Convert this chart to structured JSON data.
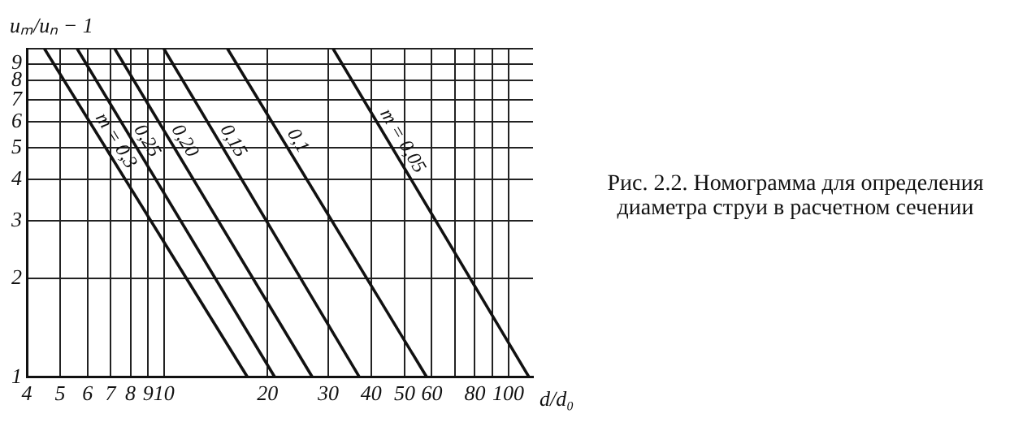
{
  "chart_data": {
    "type": "line",
    "xlabel": "d/d₀",
    "ylabel": "uₘ/uₙ − 1",
    "log": "xy",
    "grid": true,
    "legend": false,
    "marker": "none",
    "line_style": "solid",
    "xlim": [
      4,
      118
    ],
    "ylim": [
      1,
      10
    ],
    "xticks": [
      4,
      5,
      6,
      7,
      8,
      9,
      10,
      {
        "value": 20,
        "label": "20"
      },
      30,
      40,
      50,
      60,
      {
        "value": 70,
        "label": null
      },
      80,
      {
        "value": 90,
        "label": null
      },
      100
    ],
    "yticks": [
      1,
      2,
      3,
      4,
      5,
      6,
      7,
      8,
      9,
      {
        "value": 10,
        "label": null
      }
    ],
    "series": [
      {
        "name": "m = 0,3",
        "color": "#111111",
        "x": [
          4.5,
          17.5
        ],
        "values": [
          10,
          1
        ]
      },
      {
        "name": "0,25",
        "color": "#111111",
        "x": [
          5.6,
          21
        ],
        "values": [
          10,
          1
        ]
      },
      {
        "name": "0,20",
        "color": "#111111",
        "x": [
          7.2,
          27
        ],
        "values": [
          10,
          1
        ]
      },
      {
        "name": "0,15",
        "color": "#111111",
        "x": [
          10,
          37
        ],
        "values": [
          10,
          1
        ]
      },
      {
        "name": "0,1",
        "color": "#111111",
        "x": [
          15.3,
          58
        ],
        "values": [
          10,
          1
        ]
      },
      {
        "name": "m = 0,05",
        "color": "#111111",
        "x": [
          31,
          115
        ],
        "values": [
          10,
          1
        ]
      }
    ],
    "annotations": [
      "Рис. 2.2. Номограмма для определения диаметра струи в расчетном сечении"
    ]
  }
}
